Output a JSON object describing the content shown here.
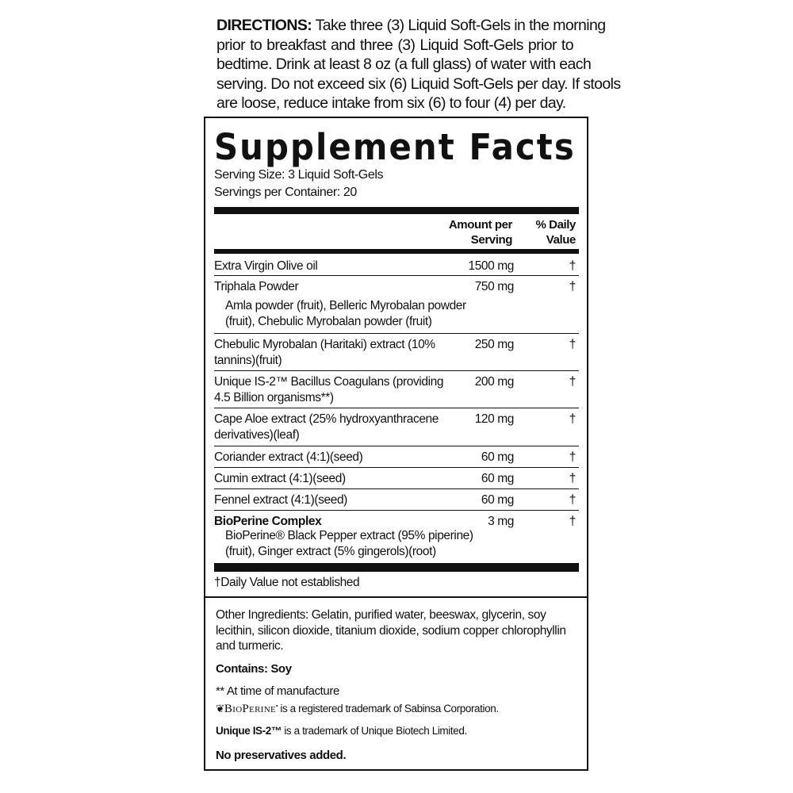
{
  "directions": {
    "label": "DIRECTIONS:",
    "lines": [
      " Take three (3) Liquid Soft-Gels in the morning",
      "prior to breakfast and three (3) Liquid Soft-Gels prior to",
      "bedtime. Drink at least 8 oz (a full glass) of water with each",
      "serving. Do not exceed six (6) Liquid Soft-Gels per day. If stools",
      "are loose, reduce intake from six (6) to four (4) per day."
    ]
  },
  "facts": {
    "title": "Supplement Facts",
    "serving_size": "Serving Size:  3 Liquid Soft-Gels",
    "servings_per_container": "Servings per Container:  20",
    "header_amount": [
      "Amount per",
      "Serving"
    ],
    "header_dv": [
      "% Daily",
      "Value"
    ],
    "rows": [
      {
        "name": "Extra Virgin Olive oil",
        "amount": "1500 mg",
        "dv": "†"
      },
      {
        "name": "Triphala Powder",
        "sub": "Amla powder (fruit), Belleric Myrobalan powder (fruit), Chebulic Myrobalan powder (fruit)",
        "amount": "750 mg",
        "dv": "†"
      },
      {
        "name": "Chebulic Myrobalan (Haritaki) extract (10% tannins)(fruit)",
        "amount": "250 mg",
        "dv": "†"
      },
      {
        "name": "Unique IS-2™ Bacillus Coagulans (providing 4.5 Billion organisms**)",
        "amount": "200 mg",
        "dv": "†"
      },
      {
        "name": "Cape Aloe extract (25% hydroxyanthracene derivatives)(leaf)",
        "amount": "120 mg",
        "dv": "†"
      },
      {
        "name": "Coriander extract (4:1)(seed)",
        "amount": "60 mg",
        "dv": "†"
      },
      {
        "name": "Cumin extract (4:1)(seed)",
        "amount": "60 mg",
        "dv": "†"
      },
      {
        "name": "Fennel extract (4:1)(seed)",
        "amount": "60 mg",
        "dv": "†"
      },
      {
        "name": "BioPerine Complex",
        "sub": "BioPerine® Black Pepper extract (95% piperine) (fruit), Ginger extract (5% gingerols)(root)",
        "amount": "3 mg",
        "dv": "†"
      }
    ],
    "footnote": "†Daily Value not established"
  },
  "other": {
    "ingredients": "Other Ingredients:  Gelatin, purified water, beeswax, glycerin, soy lecithin, silicon dioxide, titanium dioxide, sodium copper chlorophyllin and turmeric.",
    "contains": "Contains: Soy",
    "manufacture_note": "** At time of manufacture",
    "bioperine_logo": "BioPerine",
    "bioperine_tm": " is a registered trademark of Sabinsa Corporation.",
    "unique_label": "Unique IS-2™",
    "unique_tm": " is a trademark of Unique Biotech Limited.",
    "preservatives": "No preservatives added."
  }
}
